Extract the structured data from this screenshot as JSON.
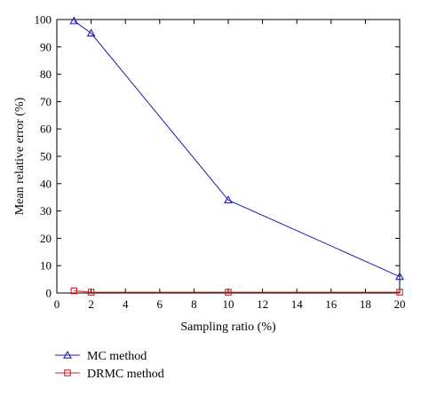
{
  "chart_data": {
    "type": "line",
    "xlabel": "Sampling ratio (%)",
    "ylabel": "Mean relative error (%)",
    "xlim": [
      0,
      20
    ],
    "ylim": [
      0,
      100
    ],
    "xticks": [
      0,
      2,
      4,
      6,
      8,
      10,
      12,
      14,
      16,
      18,
      20
    ],
    "yticks": [
      0,
      10,
      20,
      30,
      40,
      50,
      60,
      70,
      80,
      90,
      100
    ],
    "grid": false,
    "legend_position": "bottom-left, below plot",
    "series": [
      {
        "name": "MC method",
        "color": "#1f1fa8",
        "marker": "triangle",
        "x": [
          1,
          2,
          10,
          20
        ],
        "y": [
          99.5,
          95,
          34,
          6
        ]
      },
      {
        "name": "DRMC method",
        "color": "#cc2020",
        "marker": "square",
        "x": [
          1,
          2,
          10,
          20
        ],
        "y": [
          0.8,
          0.3,
          0.3,
          0.3
        ]
      }
    ]
  }
}
